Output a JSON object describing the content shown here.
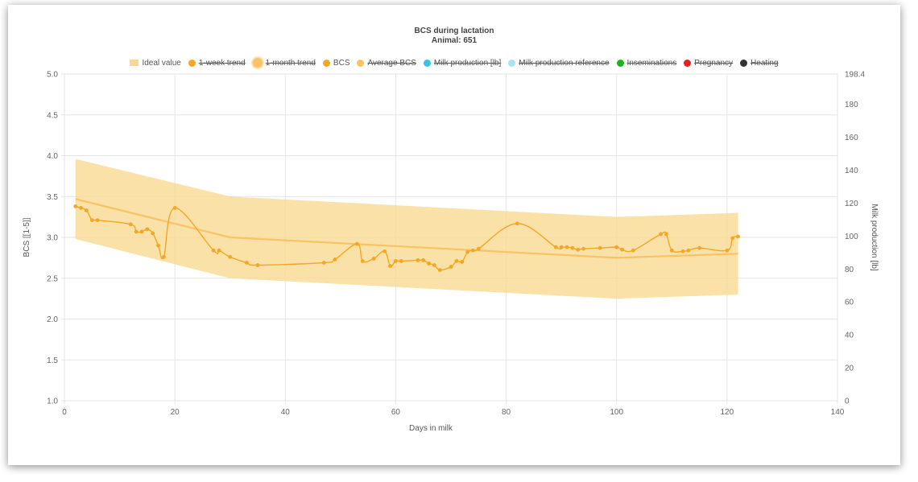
{
  "title": "BCS during lactation",
  "subtitle": "Animal: 651",
  "legend": [
    {
      "label": "Ideal value",
      "color": "#f9d98e",
      "shape": "box",
      "off": false
    },
    {
      "label": "1-week trend",
      "color": "#f5a623",
      "shape": "dot",
      "off": true
    },
    {
      "label": "1-month trend",
      "color": "#f8c265",
      "shape": "big",
      "off": true
    },
    {
      "label": "BCS",
      "color": "#f5a623",
      "shape": "dot",
      "off": false
    },
    {
      "label": "Average BCS",
      "color": "#f8c265",
      "shape": "dot",
      "off": true
    },
    {
      "label": "Milk production [lb]",
      "color": "#36c5e0",
      "shape": "dot",
      "off": true
    },
    {
      "label": "Milk production reference",
      "color": "#a7e3f0",
      "shape": "dot",
      "off": true
    },
    {
      "label": "Inseminations",
      "color": "#1db31d",
      "shape": "dot",
      "off": true
    },
    {
      "label": "Pregnancy",
      "color": "#e6201f",
      "shape": "dot",
      "off": true
    },
    {
      "label": "Heating",
      "color": "#333333",
      "shape": "dot",
      "off": true
    }
  ],
  "chart_data": {
    "type": "line",
    "xlabel": "Days in milk",
    "ylabel": "BCS [[1-5]]",
    "y2label": "Milk production [lb]",
    "xlim": [
      0,
      140
    ],
    "ylim": [
      1.0,
      5.0
    ],
    "y2lim": [
      0,
      198.4
    ],
    "x_ticks": [
      "0",
      "20",
      "40",
      "60",
      "80",
      "100",
      "120",
      "140"
    ],
    "y_ticks": [
      "1.0",
      "1.5",
      "2.0",
      "2.5",
      "3.0",
      "3.5",
      "4.0",
      "4.5",
      "5.0"
    ],
    "y2_ticks": [
      "0",
      "20",
      "40",
      "60",
      "80",
      "100",
      "120",
      "140",
      "160",
      "180",
      "198.4"
    ],
    "grid": true,
    "legend_position": "top",
    "colors": {
      "bcs": "#f5a623",
      "band": "#f9d98e",
      "ideal": "#f8c265"
    },
    "ideal_band": {
      "x": [
        2,
        30,
        100,
        122
      ],
      "upper": [
        3.96,
        3.5,
        3.25,
        3.3
      ],
      "lower": [
        2.98,
        2.5,
        2.25,
        2.3
      ]
    },
    "ideal_value": {
      "x": [
        2,
        30,
        100,
        122
      ],
      "y": [
        3.47,
        3.0,
        2.75,
        2.8
      ]
    },
    "series": [
      {
        "name": "BCS",
        "x": [
          2,
          3,
          4,
          5,
          6,
          12,
          13,
          14,
          15,
          16,
          17,
          18,
          20,
          27,
          28,
          30,
          33,
          35,
          47,
          49,
          53,
          54,
          56,
          58,
          59,
          60,
          61,
          64,
          65,
          66,
          67,
          68,
          70,
          71,
          72,
          73,
          74,
          75,
          82,
          89,
          90,
          91,
          92,
          93,
          94,
          97,
          100,
          101,
          103,
          108,
          109,
          110,
          112,
          113,
          115,
          120,
          121,
          122
        ],
        "values": [
          3.38,
          3.36,
          3.33,
          3.21,
          3.21,
          3.16,
          3.07,
          3.07,
          3.1,
          3.05,
          2.9,
          2.76,
          3.36,
          2.84,
          2.84,
          2.76,
          2.69,
          2.66,
          2.69,
          2.73,
          2.92,
          2.71,
          2.74,
          2.83,
          2.65,
          2.71,
          2.71,
          2.72,
          2.72,
          2.68,
          2.66,
          2.6,
          2.64,
          2.71,
          2.7,
          2.82,
          2.84,
          2.86,
          3.17,
          2.88,
          2.88,
          2.88,
          2.87,
          2.85,
          2.86,
          2.87,
          2.88,
          2.85,
          2.84,
          3.04,
          3.04,
          2.84,
          2.83,
          2.84,
          2.87,
          2.84,
          2.99,
          3.01
        ]
      }
    ]
  }
}
